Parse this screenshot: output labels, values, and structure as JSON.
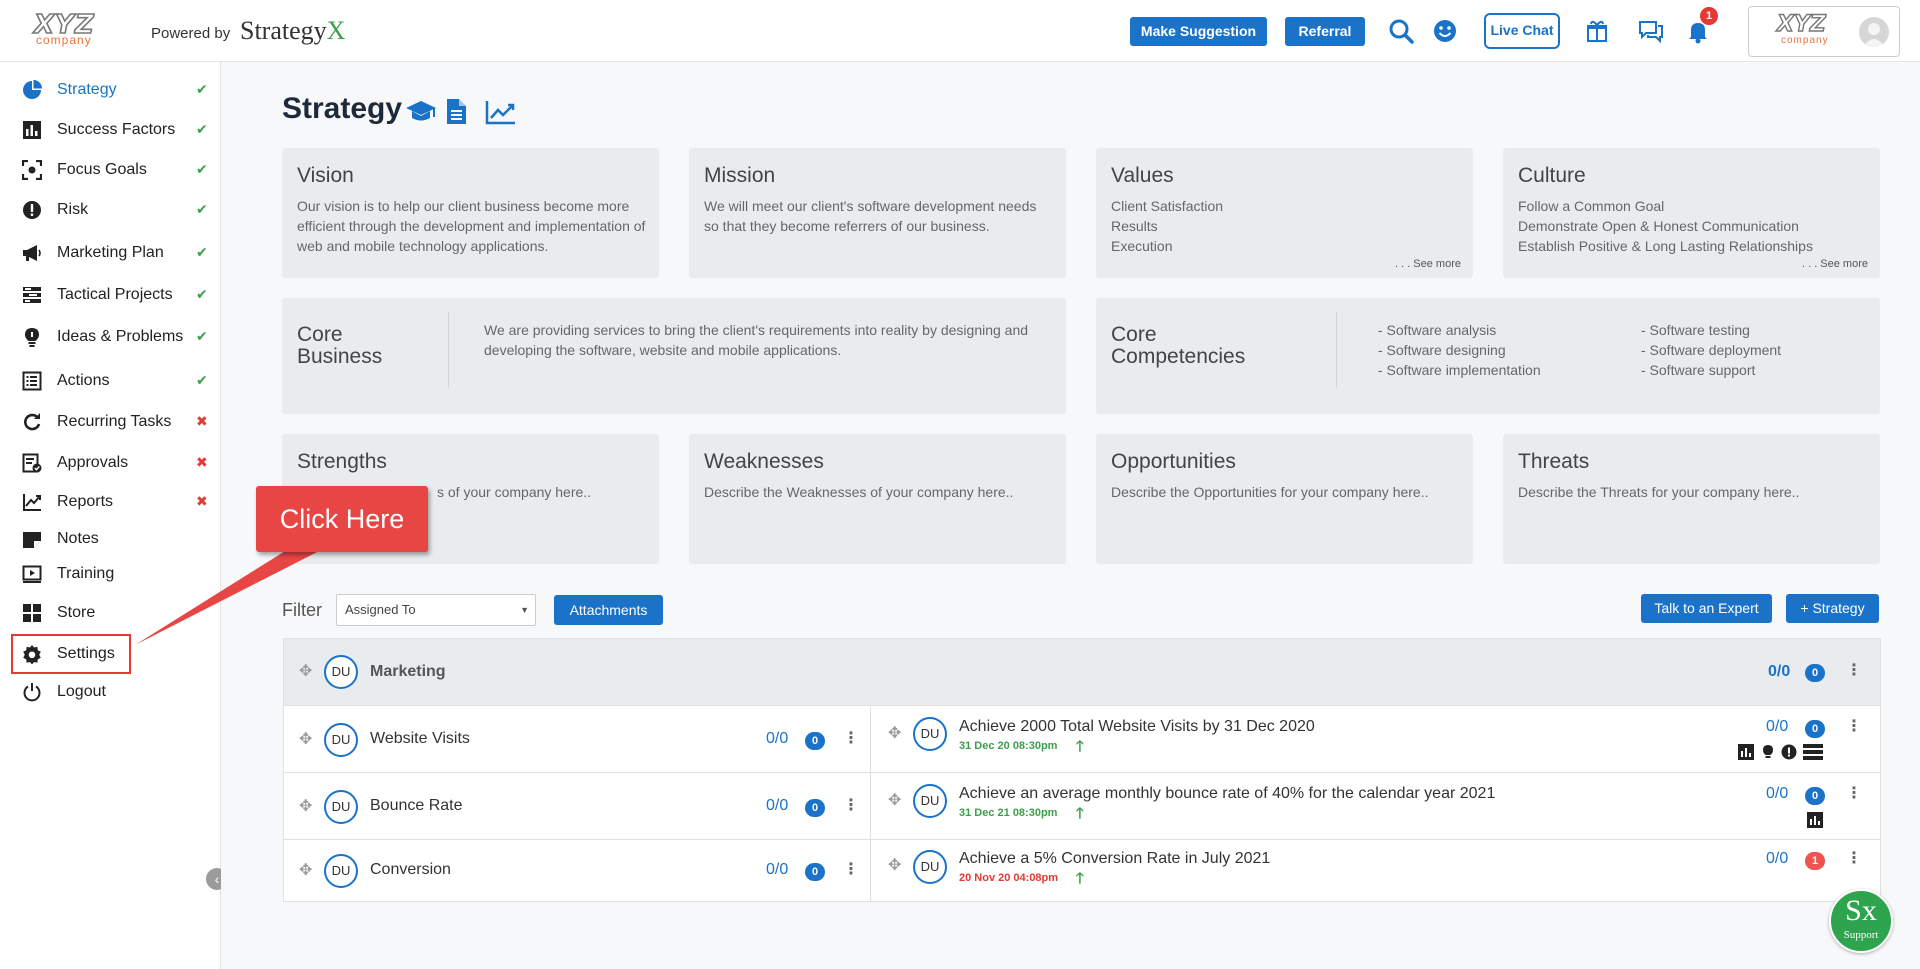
{
  "header": {
    "powered_by": "Powered by",
    "brand": "Strategy",
    "brand_x": "X",
    "logo_text": "XYZ",
    "logo_sub": "company",
    "make_suggestion": "Make Suggestion",
    "referral": "Referral",
    "live_chat": "Live Chat",
    "notification_count": "1"
  },
  "sidebar": {
    "items": [
      {
        "label": "Strategy",
        "status": "✔"
      },
      {
        "label": "Success Factors",
        "status": "✔"
      },
      {
        "label": "Focus Goals",
        "status": "✔"
      },
      {
        "label": "Risk",
        "status": "✔"
      },
      {
        "label": "Marketing Plan",
        "status": "✔"
      },
      {
        "label": "Tactical Projects",
        "status": "✔"
      },
      {
        "label": "Ideas & Problems",
        "status": "✔"
      },
      {
        "label": "Actions",
        "status": "✔"
      },
      {
        "label": "Recurring Tasks",
        "status": "✖"
      },
      {
        "label": "Approvals",
        "status": "✖"
      },
      {
        "label": "Reports",
        "status": "✖"
      },
      {
        "label": "Notes",
        "status": ""
      },
      {
        "label": "Training",
        "status": ""
      },
      {
        "label": "Store",
        "status": ""
      },
      {
        "label": "Settings",
        "status": ""
      },
      {
        "label": "Logout",
        "status": ""
      }
    ]
  },
  "callout": {
    "text": "Click Here"
  },
  "page": {
    "title": "Strategy"
  },
  "cards": {
    "vision": {
      "title": "Vision",
      "text": "Our vision is to help our client business become more efficient through the development and implementation of web and mobile technology applications."
    },
    "mission": {
      "title": "Mission",
      "text": "We will meet our client's software development needs so that they become referrers of our business."
    },
    "values": {
      "title": "Values",
      "lines": [
        "Client Satisfaction",
        "Results",
        "Execution"
      ],
      "more": ". . . See more"
    },
    "culture": {
      "title": "Culture",
      "lines": [
        "Follow a Common Goal",
        "Demonstrate Open & Honest Communication",
        "Establish Positive & Long Lasting Relationships"
      ],
      "more": ". . . See more"
    },
    "core_business": {
      "title_1": "Core",
      "title_2": "Business",
      "text": "We are providing services to bring the client's requirements into reality by designing and developing the software, website and mobile applications."
    },
    "core_competencies": {
      "title_1": "Core",
      "title_2": "Competencies",
      "col1": [
        "- Software analysis",
        "- Software designing",
        "- Software implementation"
      ],
      "col2": [
        "- Software testing",
        "- Software deployment",
        "- Software support"
      ]
    },
    "strengths": {
      "title": "Strengths",
      "text": "s of your company here.."
    },
    "weaknesses": {
      "title": "Weaknesses",
      "text": "Describe the Weaknesses of your company here.."
    },
    "opportunities": {
      "title": "Opportunities",
      "text": "Describe the Opportunities for your company here.."
    },
    "threats": {
      "title": "Threats",
      "text": "Describe the Threats for your company here.."
    }
  },
  "filter": {
    "label": "Filter",
    "select_value": "Assigned To",
    "attachments": "Attachments"
  },
  "actions": {
    "talk_expert": "Talk to an Expert",
    "add_strategy": "+ Strategy"
  },
  "table": {
    "group": {
      "avatar": "DU",
      "name": "Marketing",
      "ratio": "0/0",
      "count": "0"
    },
    "rows": [
      {
        "avatar": "DU",
        "factor": "Website Visits",
        "ratio": "0/0",
        "count": "0",
        "goal": "Achieve 2000 Total Website Visits by 31 Dec 2020",
        "date": "31 Dec 20 08:30pm",
        "goal_ratio": "0/0",
        "goal_count": "0"
      },
      {
        "avatar": "DU",
        "factor": "Bounce Rate",
        "ratio": "0/0",
        "count": "0",
        "goal": "Achieve an average monthly bounce rate of 40% for the calendar year 2021",
        "date": "31 Dec 21 08:30pm",
        "goal_ratio": "0/0",
        "goal_count": "0"
      },
      {
        "avatar": "DU",
        "factor": "Conversion",
        "ratio": "0/0",
        "count": "0",
        "goal": "Achieve a 5% Conversion Rate in July 2021",
        "date": "20 Nov 20 04:08pm",
        "goal_ratio": "0/0",
        "goal_count": "1"
      }
    ]
  },
  "support": {
    "logo": "Sx",
    "label": "Support"
  },
  "colors": {
    "primary": "#1a73c9",
    "success": "#3aa04a",
    "danger": "#e53935",
    "card_bg": "#e9ecef"
  }
}
